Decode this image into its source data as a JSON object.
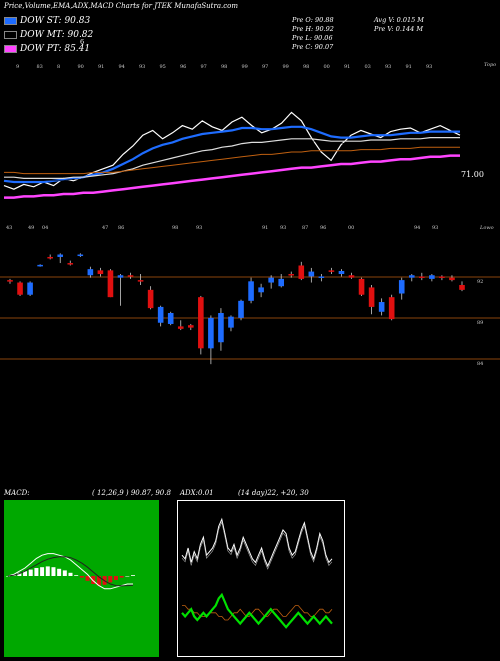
{
  "title": "Price,Volume,EMA,ADX,MACD Charts for JTEK MunafaSutra.com",
  "legend": [
    {
      "label": "DOW ST: 90.83",
      "color": "#1e6cff"
    },
    {
      "label": "DOW MT: 90.82",
      "color": "#000000"
    },
    {
      "label": "DOW PT: 85.41",
      "color": "#ff44ff"
    }
  ],
  "legend_extra": "6",
  "stats": {
    "pre_o": "Pre   O: 90.88",
    "pre_h": "Pre   H: 90.92",
    "pre_l": "Pre   L: 90.06",
    "pre_c": "Pre   C: 90.07",
    "avg_v": "Avg V: 0.015 M",
    "pre_v": "Pre   V: 0.144  M"
  },
  "ema_panel": {
    "top_label": "Topo",
    "bottom_label": "Lowo",
    "price_label": "71.00",
    "top_dates": [
      "9",
      "83",
      "8",
      "90",
      "91",
      "94",
      "93",
      "95",
      "96",
      "97",
      "98",
      "99",
      "97",
      "99",
      "98",
      "00",
      "91",
      "03",
      "93",
      "91",
      "93"
    ],
    "bottom_dates": [
      "43",
      "49",
      "04",
      "47",
      "86",
      "98",
      "93",
      "91",
      "93",
      "87",
      "96",
      "00",
      "94",
      "93"
    ]
  },
  "candle_panel": {
    "price_labels": [
      "92",
      "89",
      "84"
    ]
  },
  "macd": {
    "label": "MACD:",
    "params": "( 12,26,9 ) 90.87, 90.8"
  },
  "adx": {
    "label": "ADX:0.01",
    "params": "(14 day)22, +20, 30"
  },
  "chart_data": [
    {
      "type": "line",
      "name": "price-ema",
      "title": "",
      "series": [
        {
          "name": "price",
          "color": "#ffffff",
          "values": [
            86.2,
            85.9,
            86.3,
            86.1,
            86.5,
            86.2,
            86.8,
            86.6,
            86.9,
            87.3,
            87.6,
            87.9,
            88.8,
            89.5,
            90.4,
            90.8,
            90.1,
            90.6,
            91.2,
            90.9,
            91.6,
            91.1,
            90.8,
            91.5,
            91.9,
            91.2,
            90.6,
            90.9,
            91.4,
            92.3,
            91.6,
            90.2,
            89.0,
            88.3,
            89.6,
            90.4,
            90.8,
            90.5,
            90.2,
            90.7,
            90.9,
            91.0,
            90.6,
            90.9,
            91.2,
            90.8,
            90.4
          ]
        },
        {
          "name": "ema_short",
          "color": "#1e6cff",
          "values": [
            86.6,
            86.5,
            86.5,
            86.5,
            86.5,
            86.6,
            86.7,
            86.8,
            86.9,
            87.1,
            87.3,
            87.6,
            88.0,
            88.4,
            88.9,
            89.3,
            89.6,
            89.8,
            90.1,
            90.3,
            90.5,
            90.6,
            90.7,
            90.8,
            91.0,
            91.0,
            90.9,
            90.9,
            91.0,
            91.1,
            91.1,
            90.9,
            90.6,
            90.3,
            90.2,
            90.2,
            90.3,
            90.4,
            90.4,
            90.4,
            90.5,
            90.6,
            90.6,
            90.7,
            90.7,
            90.7,
            90.7
          ]
        },
        {
          "name": "ema_mid",
          "color": "#dddddd",
          "values": [
            86.9,
            86.9,
            86.8,
            86.8,
            86.8,
            86.8,
            86.8,
            86.9,
            86.9,
            87.0,
            87.1,
            87.2,
            87.4,
            87.6,
            87.9,
            88.1,
            88.3,
            88.5,
            88.7,
            88.9,
            89.1,
            89.2,
            89.4,
            89.5,
            89.7,
            89.8,
            89.8,
            89.9,
            90.0,
            90.1,
            90.1,
            90.1,
            90.0,
            89.9,
            89.9,
            89.9,
            89.9,
            90.0,
            90.0,
            90.0,
            90.1,
            90.1,
            90.1,
            90.2,
            90.2,
            90.2,
            90.2
          ]
        },
        {
          "name": "ema_long",
          "color": "#c06010",
          "values": [
            87.3,
            87.3,
            87.2,
            87.2,
            87.2,
            87.2,
            87.2,
            87.2,
            87.2,
            87.3,
            87.3,
            87.3,
            87.4,
            87.5,
            87.6,
            87.7,
            87.8,
            87.9,
            88.0,
            88.1,
            88.2,
            88.3,
            88.4,
            88.5,
            88.6,
            88.7,
            88.8,
            88.8,
            88.9,
            89.0,
            89.0,
            89.1,
            89.1,
            89.1,
            89.1,
            89.1,
            89.2,
            89.2,
            89.2,
            89.3,
            89.3,
            89.3,
            89.4,
            89.4,
            89.4,
            89.4,
            89.4
          ]
        },
        {
          "name": "ema_pt",
          "color": "#ff44ff",
          "values": [
            85.2,
            85.2,
            85.3,
            85.3,
            85.4,
            85.4,
            85.5,
            85.5,
            85.6,
            85.6,
            85.7,
            85.8,
            85.9,
            86.0,
            86.1,
            86.2,
            86.3,
            86.4,
            86.5,
            86.6,
            86.7,
            86.8,
            86.9,
            87.0,
            87.1,
            87.2,
            87.3,
            87.4,
            87.5,
            87.6,
            87.7,
            87.7,
            87.8,
            87.9,
            88.0,
            88.0,
            88.1,
            88.2,
            88.2,
            88.3,
            88.4,
            88.4,
            88.5,
            88.6,
            88.6,
            88.7,
            88.7
          ]
        }
      ]
    },
    {
      "type": "candlestick",
      "name": "candles",
      "ylim": [
        83,
        94
      ],
      "values": [
        {
          "o": 91.2,
          "h": 91.3,
          "l": 90.9,
          "c": 91.1,
          "up": false
        },
        {
          "o": 91.0,
          "h": 91.1,
          "l": 89.9,
          "c": 90.0,
          "up": false
        },
        {
          "o": 90.0,
          "h": 91.1,
          "l": 89.9,
          "c": 91.0,
          "up": true
        },
        {
          "o": 92.4,
          "h": 92.5,
          "l": 92.3,
          "c": 92.45,
          "up": true
        },
        {
          "o": 93.0,
          "h": 93.3,
          "l": 92.9,
          "c": 93.1,
          "up": false
        },
        {
          "o": 93.1,
          "h": 93.4,
          "l": 92.6,
          "c": 93.3,
          "up": true
        },
        {
          "o": 92.6,
          "h": 92.8,
          "l": 92.4,
          "c": 92.5,
          "up": false
        },
        {
          "o": 93.2,
          "h": 93.4,
          "l": 93.1,
          "c": 93.3,
          "up": true
        },
        {
          "o": 91.6,
          "h": 92.3,
          "l": 91.4,
          "c": 92.1,
          "up": true
        },
        {
          "o": 92.0,
          "h": 92.2,
          "l": 91.5,
          "c": 91.7,
          "up": false
        },
        {
          "o": 92.0,
          "h": 92.1,
          "l": 89.8,
          "c": 89.8,
          "up": false
        },
        {
          "o": 91.4,
          "h": 91.7,
          "l": 89.1,
          "c": 91.6,
          "up": true
        },
        {
          "o": 91.6,
          "h": 91.8,
          "l": 91.3,
          "c": 91.5,
          "up": false
        },
        {
          "o": 91.2,
          "h": 91.7,
          "l": 90.8,
          "c": 91.1,
          "up": false
        },
        {
          "o": 90.4,
          "h": 90.7,
          "l": 88.8,
          "c": 88.9,
          "up": false
        },
        {
          "o": 87.7,
          "h": 89.1,
          "l": 87.4,
          "c": 89.0,
          "up": true
        },
        {
          "o": 87.6,
          "h": 88.6,
          "l": 87.5,
          "c": 88.5,
          "up": true
        },
        {
          "o": 87.4,
          "h": 87.9,
          "l": 87.1,
          "c": 87.2,
          "up": false
        },
        {
          "o": 87.5,
          "h": 87.6,
          "l": 87.1,
          "c": 87.3,
          "up": false
        },
        {
          "o": 89.8,
          "h": 89.9,
          "l": 85.1,
          "c": 85.6,
          "up": false
        },
        {
          "o": 85.6,
          "h": 88.3,
          "l": 84.3,
          "c": 88.1,
          "up": true
        },
        {
          "o": 86.1,
          "h": 88.9,
          "l": 85.4,
          "c": 88.5,
          "up": true
        },
        {
          "o": 87.3,
          "h": 88.3,
          "l": 87.0,
          "c": 88.2,
          "up": true
        },
        {
          "o": 88.1,
          "h": 89.6,
          "l": 87.9,
          "c": 89.5,
          "up": true
        },
        {
          "o": 89.5,
          "h": 91.4,
          "l": 89.3,
          "c": 91.1,
          "up": true
        },
        {
          "o": 90.2,
          "h": 90.9,
          "l": 89.8,
          "c": 90.6,
          "up": true
        },
        {
          "o": 91.0,
          "h": 91.6,
          "l": 90.5,
          "c": 91.4,
          "up": true
        },
        {
          "o": 90.7,
          "h": 91.7,
          "l": 90.6,
          "c": 91.3,
          "up": true
        },
        {
          "o": 91.6,
          "h": 91.9,
          "l": 91.4,
          "c": 91.7,
          "up": false
        },
        {
          "o": 92.4,
          "h": 92.7,
          "l": 91.2,
          "c": 91.3,
          "up": false
        },
        {
          "o": 91.5,
          "h": 92.2,
          "l": 91.0,
          "c": 91.9,
          "up": true
        },
        {
          "o": 91.4,
          "h": 91.7,
          "l": 91.1,
          "c": 91.5,
          "up": true
        },
        {
          "o": 91.9,
          "h": 92.2,
          "l": 91.7,
          "c": 92.0,
          "up": false
        },
        {
          "o": 91.7,
          "h": 92.1,
          "l": 91.5,
          "c": 91.95,
          "up": true
        },
        {
          "o": 91.6,
          "h": 91.8,
          "l": 91.3,
          "c": 91.4,
          "up": false
        },
        {
          "o": 91.3,
          "h": 91.4,
          "l": 89.9,
          "c": 90.0,
          "up": false
        },
        {
          "o": 90.6,
          "h": 90.8,
          "l": 88.4,
          "c": 89.0,
          "up": false
        },
        {
          "o": 88.6,
          "h": 89.7,
          "l": 88.3,
          "c": 89.4,
          "up": true
        },
        {
          "o": 89.8,
          "h": 90.0,
          "l": 87.9,
          "c": 88.0,
          "up": false
        },
        {
          "o": 90.1,
          "h": 91.4,
          "l": 89.6,
          "c": 91.2,
          "up": true
        },
        {
          "o": 91.4,
          "h": 91.7,
          "l": 91.1,
          "c": 91.6,
          "up": true
        },
        {
          "o": 91.4,
          "h": 91.8,
          "l": 91.2,
          "c": 91.5,
          "up": false
        },
        {
          "o": 91.3,
          "h": 91.7,
          "l": 91.1,
          "c": 91.6,
          "up": true
        },
        {
          "o": 91.4,
          "h": 91.6,
          "l": 91.2,
          "c": 91.5,
          "up": false
        },
        {
          "o": 91.4,
          "h": 91.6,
          "l": 91.1,
          "c": 91.2,
          "up": false
        },
        {
          "o": 90.8,
          "h": 91.1,
          "l": 90.3,
          "c": 90.4,
          "up": false
        }
      ]
    },
    {
      "type": "bar",
      "name": "macd",
      "series": [
        {
          "name": "macd",
          "color": "#ffffff",
          "values": [
            0.0,
            0.1,
            0.3,
            0.5,
            0.8,
            1.1,
            1.3,
            1.4,
            1.4,
            1.3,
            1.2,
            1.0,
            0.7,
            0.4,
            0.1,
            -0.3,
            -0.6,
            -0.8,
            -0.8,
            -0.7,
            -0.6,
            -0.5,
            -0.5
          ]
        },
        {
          "name": "signal",
          "color": "#222222",
          "values": [
            0.0,
            0.05,
            0.15,
            0.3,
            0.5,
            0.7,
            0.9,
            1.05,
            1.15,
            1.2,
            1.2,
            1.15,
            1.0,
            0.8,
            0.55,
            0.25,
            -0.05,
            -0.3,
            -0.5,
            -0.6,
            -0.62,
            -0.6,
            -0.58
          ]
        },
        {
          "name": "histogram",
          "values": [
            0.0,
            0.1,
            0.2,
            0.3,
            0.4,
            0.5,
            0.55,
            0.6,
            0.55,
            0.45,
            0.35,
            0.2,
            0.05,
            -0.1,
            -0.3,
            -0.5,
            -0.6,
            -0.55,
            -0.4,
            -0.25,
            -0.1,
            0.0,
            0.05
          ]
        }
      ]
    },
    {
      "type": "line",
      "name": "adx",
      "series": [
        {
          "name": "di_plus",
          "color": "#ffffff",
          "values": [
            28,
            27,
            30,
            26,
            29,
            27,
            31,
            33,
            28,
            29,
            30,
            32,
            36,
            38,
            34,
            30,
            29,
            31,
            28,
            30,
            33,
            31,
            29,
            27,
            26,
            28,
            30,
            27,
            25,
            27,
            29,
            31,
            33,
            35,
            34,
            30,
            28,
            29,
            32,
            35,
            37,
            33,
            29,
            27,
            30,
            34,
            32,
            28,
            26,
            27
          ]
        },
        {
          "name": "di_minus",
          "color": "#c06010",
          "values": [
            14,
            14,
            13,
            13,
            12,
            12,
            11,
            11,
            11,
            12,
            12,
            12,
            11,
            11,
            10,
            10,
            11,
            12,
            12,
            13,
            12,
            11,
            11,
            12,
            13,
            13,
            12,
            11,
            11,
            12,
            13,
            13,
            12,
            11,
            11,
            12,
            13,
            14,
            14,
            13,
            12,
            12,
            11,
            11,
            12,
            13,
            13,
            12,
            12,
            13
          ]
        },
        {
          "name": "adx",
          "color": "#00e000",
          "values": [
            12,
            11,
            12,
            13,
            11,
            10,
            11,
            12,
            11,
            12,
            13,
            14,
            16,
            17,
            15,
            13,
            12,
            11,
            10,
            9,
            10,
            11,
            12,
            11,
            10,
            9,
            10,
            11,
            12,
            13,
            12,
            11,
            10,
            9,
            8,
            9,
            10,
            11,
            12,
            11,
            10,
            9,
            10,
            11,
            10,
            9,
            10,
            11,
            10,
            9
          ]
        }
      ]
    }
  ]
}
